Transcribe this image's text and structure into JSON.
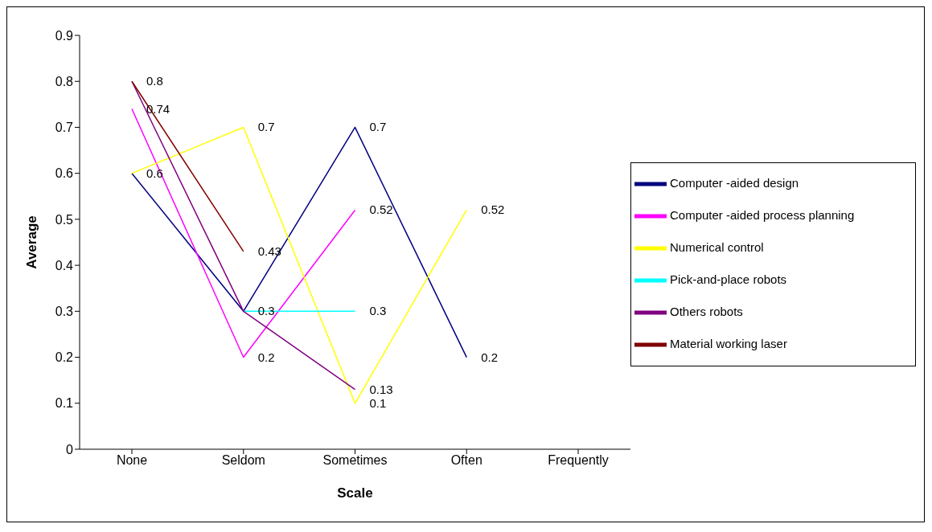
{
  "chart_data": {
    "type": "line",
    "xlabel": "Scale",
    "ylabel": "Average",
    "categories": [
      "None",
      "Seldom",
      "Sometimes",
      "Often",
      "Frequently"
    ],
    "series": [
      {
        "name": "Computer -aided design",
        "color": "#000080",
        "values": [
          0.6,
          0.3,
          0.7,
          0.2,
          null
        ],
        "value_labels": [
          "0.6",
          "0.3",
          "0.7",
          "0.2",
          null
        ]
      },
      {
        "name": "Computer -aided process planning",
        "color": "#ff00ff",
        "values": [
          0.74,
          0.2,
          0.52,
          null,
          null
        ],
        "value_labels": [
          "0.74",
          "0.2",
          "0.52",
          null,
          null
        ]
      },
      {
        "name": "Numerical control",
        "color": "#ffff00",
        "values": [
          0.6,
          0.7,
          0.1,
          0.52,
          null
        ],
        "value_labels": [
          null,
          "0.7",
          "0.1",
          "0.52",
          null
        ]
      },
      {
        "name": "Pick-and-place robots",
        "color": "#00ffff",
        "values": [
          null,
          0.3,
          0.3,
          null,
          null
        ],
        "value_labels": [
          null,
          null,
          "0.3",
          null,
          null
        ]
      },
      {
        "name": "Others robots",
        "color": "#800080",
        "values": [
          0.8,
          0.3,
          0.13,
          null,
          null
        ],
        "value_labels": [
          "0.8",
          null,
          "0.13",
          null,
          null
        ]
      },
      {
        "name": "Material working laser",
        "color": "#800000",
        "values": [
          0.8,
          0.43,
          null,
          null,
          null
        ],
        "value_labels": [
          null,
          "0.43",
          null,
          null,
          null
        ]
      }
    ],
    "ylim": [
      0,
      0.9
    ],
    "yticks": [
      0,
      0.1,
      0.2,
      0.3,
      0.4,
      0.5,
      0.6,
      0.7,
      0.8,
      0.9
    ],
    "legend": "right",
    "marker": "none",
    "line_style": "solid"
  }
}
